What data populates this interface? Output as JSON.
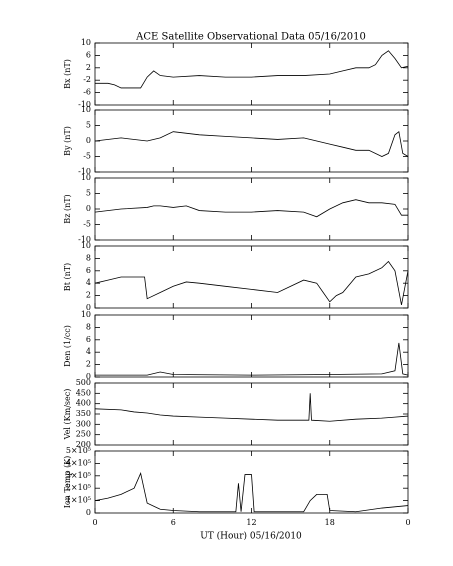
{
  "chart_data": [
    {
      "type": "line",
      "title": "ACE Satellite Observational Data   05/16/2010",
      "ylabel": "Bx (nT)",
      "x": [
        0,
        1,
        1.5,
        2,
        3,
        3.5,
        4,
        4.5,
        5,
        6,
        8,
        10,
        12,
        14,
        16,
        18,
        19,
        20,
        21,
        21.5,
        22,
        22.5,
        23,
        23.5,
        24
      ],
      "series": [
        {
          "color": "#000000",
          "values": [
            -3,
            -3,
            -3.5,
            -4.5,
            -4.5,
            -4.5,
            -1,
            1,
            -0.5,
            -1,
            -0.5,
            -1,
            -1,
            -0.5,
            -0.5,
            0,
            1,
            2,
            2,
            3,
            6,
            7.5,
            5,
            2,
            2.5
          ]
        }
      ],
      "xlim": [
        0,
        24
      ],
      "ylim": [
        -10,
        10
      ],
      "yticks": [
        10,
        6,
        2,
        -2,
        -6,
        -10
      ]
    },
    {
      "type": "line",
      "ylabel": "By (nT)",
      "x": [
        0,
        2,
        4,
        5,
        6,
        8,
        10,
        12,
        14,
        16,
        17,
        18,
        19,
        20,
        21,
        22,
        22.5,
        23,
        23.3,
        23.6,
        24
      ],
      "series": [
        {
          "color": "#000000",
          "values": [
            0,
            1,
            0,
            1,
            3,
            2,
            1.5,
            1,
            0.5,
            1,
            0,
            -1,
            -2,
            -3,
            -3,
            -5,
            -4,
            2,
            3,
            -4,
            -5
          ]
        }
      ],
      "xlim": [
        0,
        24
      ],
      "ylim": [
        -10,
        10
      ],
      "yticks": [
        10,
        5,
        0,
        -5,
        -10
      ]
    },
    {
      "type": "line",
      "ylabel": "Bz (nT)",
      "x": [
        0,
        2,
        4,
        4.5,
        5,
        6,
        7,
        8,
        10,
        12,
        14,
        16,
        17,
        18,
        19,
        20,
        21,
        22,
        23,
        23.5,
        24
      ],
      "series": [
        {
          "color": "#000000",
          "values": [
            -1,
            0,
            0.5,
            1,
            1,
            0.5,
            1,
            -0.5,
            -1,
            -1,
            -0.5,
            -1,
            -2.5,
            0,
            2,
            3,
            2,
            2,
            1.5,
            -2,
            -2
          ]
        }
      ],
      "xlim": [
        0,
        24
      ],
      "ylim": [
        -10,
        10
      ],
      "yticks": [
        10,
        5,
        0,
        -5,
        -10
      ]
    },
    {
      "type": "line",
      "ylabel": "Bt (nT)",
      "x": [
        0,
        1,
        2,
        3,
        3.8,
        4,
        5,
        6,
        7,
        8,
        10,
        12,
        14,
        16,
        17,
        17.5,
        18,
        18.5,
        19,
        20,
        21,
        22,
        22.5,
        23,
        23.5,
        24
      ],
      "series": [
        {
          "color": "#000000",
          "values": [
            4,
            4.5,
            5,
            5,
            5,
            1.5,
            2.5,
            3.5,
            4.2,
            4,
            3.5,
            3,
            2.5,
            4.5,
            4,
            2.5,
            1,
            2,
            2.5,
            5,
            5.5,
            6.5,
            7.5,
            6,
            0.5,
            6
          ]
        }
      ],
      "xlim": [
        0,
        24
      ],
      "ylim": [
        0,
        10
      ],
      "yticks": [
        10,
        8,
        6,
        4,
        2,
        0
      ]
    },
    {
      "type": "line",
      "ylabel": "Den (1/cc)",
      "x": [
        0,
        4,
        5,
        6,
        12,
        18,
        22,
        23,
        23.3,
        23.6,
        24
      ],
      "series": [
        {
          "color": "#000000",
          "values": [
            0.3,
            0.3,
            0.8,
            0.4,
            0.3,
            0.4,
            0.5,
            1,
            5.5,
            0.5,
            0.3
          ]
        }
      ],
      "xlim": [
        0,
        24
      ],
      "ylim": [
        0,
        10
      ],
      "yticks": [
        10,
        8,
        6,
        4,
        2,
        0
      ]
    },
    {
      "type": "line",
      "ylabel": "Vel (Km/sec)",
      "x": [
        0,
        2,
        3,
        4,
        5,
        6,
        8,
        10,
        12,
        14,
        16,
        16.4,
        16.5,
        16.6,
        18,
        20,
        22,
        23,
        24
      ],
      "series": [
        {
          "color": "#000000",
          "values": [
            375,
            370,
            360,
            355,
            345,
            340,
            335,
            330,
            325,
            320,
            320,
            320,
            450,
            320,
            315,
            325,
            330,
            335,
            340
          ]
        }
      ],
      "xlim": [
        0,
        24
      ],
      "ylim": [
        200,
        500
      ],
      "yticks": [
        500,
        450,
        400,
        350,
        300,
        250,
        200
      ]
    },
    {
      "type": "line",
      "ylabel": "Ion Temp (K)",
      "xlabel": "UT (Hour)   05/16/2010",
      "x": [
        0,
        1,
        2,
        3,
        3.5,
        4,
        5,
        6,
        8,
        10,
        10.8,
        11,
        11.2,
        11.5,
        12,
        12.2,
        14,
        16,
        16.5,
        17,
        17.5,
        17.8,
        18,
        20,
        22,
        24
      ],
      "series": [
        {
          "color": "#000000",
          "values": [
            100000,
            120000,
            150000,
            200000,
            320000,
            80000,
            30000,
            20000,
            10000,
            10000,
            10000,
            240000,
            10000,
            310000,
            310000,
            10000,
            10000,
            10000,
            100000,
            150000,
            150000,
            150000,
            20000,
            10000,
            40000,
            60000
          ]
        }
      ],
      "xlim": [
        0,
        24
      ],
      "ylim": [
        0,
        500000
      ],
      "yticks": [
        {
          "value": 500000,
          "label": "5×10⁵"
        },
        {
          "value": 400000,
          "label": "4×10⁵"
        },
        {
          "value": 300000,
          "label": "3×10⁵"
        },
        {
          "value": 200000,
          "label": "2×10⁵"
        },
        {
          "value": 100000,
          "label": "1×10⁵"
        },
        0
      ],
      "xticks": [
        0,
        6,
        12,
        18,
        {
          "value": 24,
          "label": "0"
        }
      ]
    }
  ]
}
